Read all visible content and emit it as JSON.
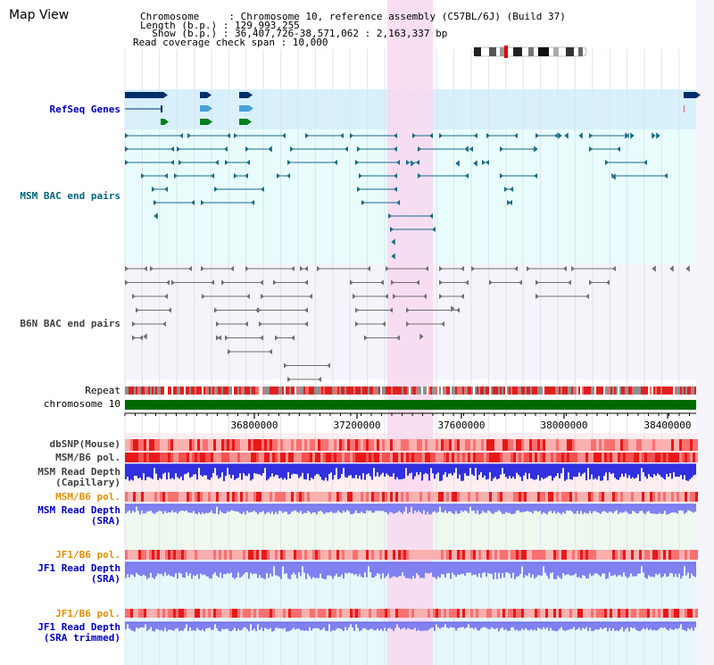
{
  "title": "Map View",
  "info": {
    "chromosome_line": "Chromosome     : Chromosome 10, reference assembly (C57BL/6J) (Build 37)",
    "length_line": "Length (b.p.) : 129,993,255",
    "show_line": "  Show (b.p.) : 36,407,726-38,571,062 : 2,163,337 bp",
    "coverage_line": "Read coverage check span : 10,000"
  },
  "tracks": {
    "refseq": "RefSeq Genes",
    "msm_bac": "MSM BAC end pairs",
    "b6n_bac": "B6N BAC end pairs",
    "repeat": "Repeat",
    "chromosome": "chromosome 10",
    "dbsnp": "dbSNP(Mouse)",
    "msm_b6_pol_1": "MSM/B6 pol.",
    "msm_depth_cap_1": "MSM Read Depth",
    "msm_depth_cap_2": "(Capillary)",
    "msm_b6_pol_2": "MSM/B6 pol.",
    "msm_depth_sra_1": "MSM Read Depth",
    "msm_depth_sra_2": "(SRA)",
    "jf1_b6_pol_1": "JF1/B6 pol.",
    "jf1_depth_sra_1": "JF1 Read Depth",
    "jf1_depth_sra_2": "(SRA)",
    "jf1_b6_pol_2": "JF1/B6 pol.",
    "jf1_depth_trim_1": "JF1 Read Depth",
    "jf1_depth_trim_2": "(SRA trimmed)"
  },
  "axis": {
    "ticks": [
      "36800000",
      "37200000",
      "37600000",
      "38000000",
      "38400000"
    ]
  },
  "colors": {
    "highlight": "#f8d8f0",
    "refseq_bg": "#d8f0fc",
    "msm_bg": "#e8fcfc",
    "gene_dark": "#002f6c",
    "gene_mid": "#4aa0d8",
    "gene_green": "#00801a",
    "msm_feature": "#156a86",
    "b6n_feature": "#707070",
    "chromosome_bar": "#006a00",
    "depth_blue": "#3030e0",
    "depth_light": "#8080f0",
    "pol_red": "#f04040"
  }
}
